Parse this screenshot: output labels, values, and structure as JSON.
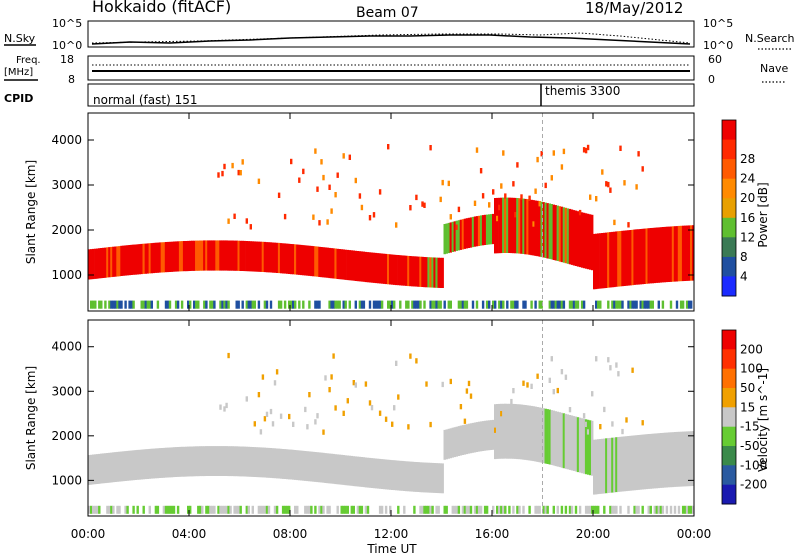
{
  "header": {
    "station": "Hokkaido (fitACF)",
    "beam": "Beam 07",
    "date": "18/May/2012"
  },
  "sky_panel": {
    "left_label": "N.Sky",
    "right_label": "N.Search",
    "left_ticks": [
      "10^5",
      "10^0"
    ],
    "right_ticks": [
      "10^5",
      "10^0"
    ]
  },
  "freq_panel": {
    "left_label_line1": "Freq.",
    "left_label_line2": "[MHz]",
    "right_label": "Nave",
    "left_ticks": [
      "18",
      "8"
    ],
    "right_ticks": [
      "60",
      "0"
    ]
  },
  "cpid_panel": {
    "label": "CPID",
    "segments": [
      "normal (fast) 151",
      "themis 3300"
    ],
    "switch_time": "18:00"
  },
  "chart_data": [
    {
      "type": "heatmap",
      "name": "power",
      "ylabel": "Slant Range [km]",
      "xlabel": "Time UT",
      "y_ticks": [
        "1000",
        "2000",
        "3000",
        "4000"
      ],
      "ylim": [
        200,
        4600
      ],
      "colorbar": {
        "label": "Power [dB]",
        "ticks": [
          "4",
          "8",
          "12",
          "16",
          "20",
          "24",
          "28"
        ],
        "colors": [
          "#1b2bff",
          "#1f4fa0",
          "#3a7a55",
          "#5fbf30",
          "#e8a000",
          "#ff8a00",
          "#ff5a00",
          "#ff2a00",
          "#ee0000"
        ]
      }
    },
    {
      "type": "heatmap",
      "name": "velocity",
      "ylabel": "Slant Range [km]",
      "xlabel": "Time UT",
      "y_ticks": [
        "1000",
        "2000",
        "3000",
        "4000"
      ],
      "ylim": [
        200,
        4600
      ],
      "colorbar": {
        "label": "Velocity [m s^-1]",
        "ticks": [
          "200",
          "100",
          "50",
          "15",
          "-15",
          "-50",
          "-100",
          "-200"
        ],
        "colors": [
          "#1a1ab0",
          "#2a5aa0",
          "#3a8a4a",
          "#66cc33",
          "#c8c8c8",
          "#f0a000",
          "#ff7000",
          "#ff3000",
          "#ee0000"
        ]
      }
    }
  ],
  "time_axis": {
    "label": "Time UT",
    "ticks": [
      "00:00",
      "04:00",
      "08:00",
      "12:00",
      "16:00",
      "20:00",
      "00:00"
    ]
  }
}
